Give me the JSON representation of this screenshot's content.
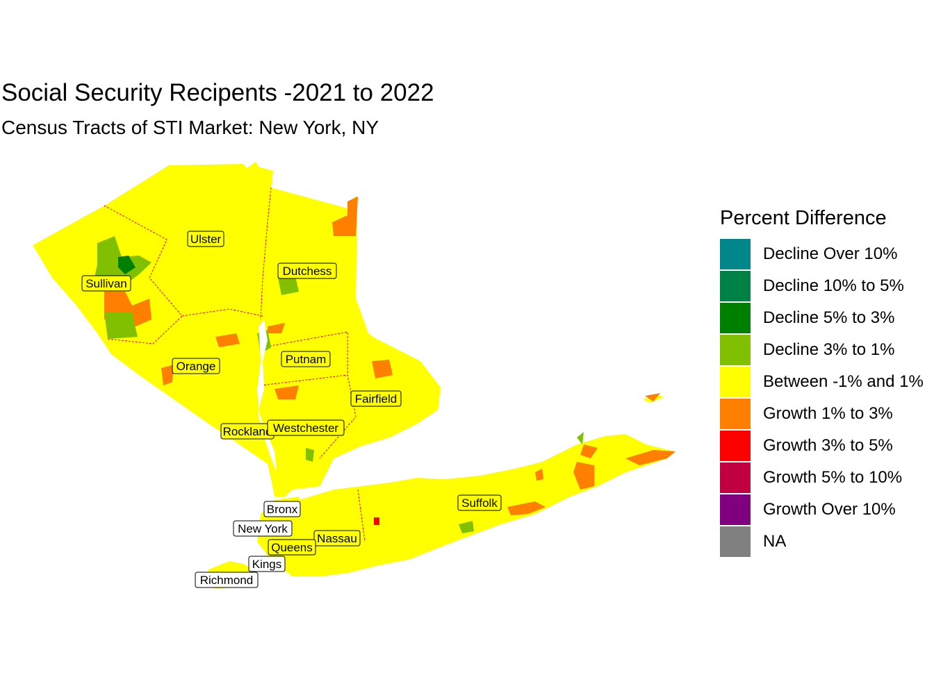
{
  "title": "Social Security Recipents -2021 to 2022",
  "subtitle": "Census Tracts of STI Market: New York, NY",
  "colors": {
    "background_fill": "#ffff00",
    "growth_1_3": "#ff8000",
    "decline_3_1": "#80c000",
    "decline_5_3": "#008000",
    "growth_3_5": "#ff0000",
    "county_border": "#e00040"
  },
  "counties": [
    {
      "name": "Ulster"
    },
    {
      "name": "Dutchess"
    },
    {
      "name": "Sullivan"
    },
    {
      "name": "Putnam"
    },
    {
      "name": "Orange"
    },
    {
      "name": "Fairfield"
    },
    {
      "name": "Rockland"
    },
    {
      "name": "Westchester"
    },
    {
      "name": "Suffolk"
    },
    {
      "name": "Bronx"
    },
    {
      "name": "New York"
    },
    {
      "name": "Nassau"
    },
    {
      "name": "Queens"
    },
    {
      "name": "Kings"
    },
    {
      "name": "Richmond"
    }
  ],
  "legend": {
    "title": "Percent Difference",
    "items": [
      {
        "label": "Decline Over 10%",
        "color": "#00868b"
      },
      {
        "label": "Decline 10% to 5%",
        "color": "#008247"
      },
      {
        "label": "Decline 5% to 3%",
        "color": "#008000"
      },
      {
        "label": "Decline 3% to 1%",
        "color": "#80c000"
      },
      {
        "label": "Between -1% and 1%",
        "color": "#ffff00"
      },
      {
        "label": "Growth 1% to 3%",
        "color": "#ff8000"
      },
      {
        "label": "Growth 3% to 5%",
        "color": "#ff0000"
      },
      {
        "label": "Growth 5% to 10%",
        "color": "#c00040"
      },
      {
        "label": "Growth Over 10%",
        "color": "#800080"
      },
      {
        "label": "NA",
        "color": "#808080"
      }
    ]
  }
}
